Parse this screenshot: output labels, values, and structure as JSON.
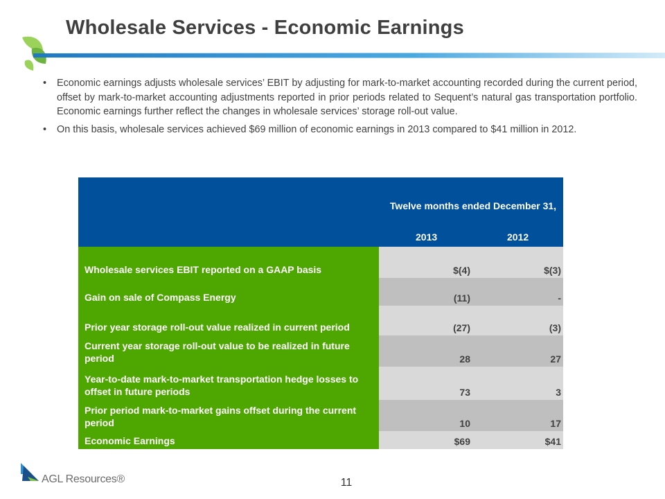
{
  "slide": {
    "title": "Wholesale Services - Economic Earnings",
    "page_number": "11",
    "logo_text": "AGL Resources®"
  },
  "bullets": [
    "Economic earnings adjusts wholesale services’ EBIT by adjusting for mark-to-market accounting recorded during the current period, offset by mark-to-market accounting adjustments reported in prior periods related to Sequent’s natural gas transportation portfolio. Economic earnings further reflect the changes in wholesale services’ storage roll-out value.",
    "On this basis, wholesale services achieved $69 million of economic earnings in 2013 compared to $41 million in 2012."
  ],
  "table": {
    "header_title": "Twelve months ended December 31,",
    "years": [
      "2013",
      "2012"
    ],
    "rows": [
      {
        "label": "Wholesale services EBIT reported on a GAAP basis",
        "v2013": "$(4)",
        "v2012": "$(3)"
      },
      {
        "label": "Gain on sale of Compass Energy",
        "v2013": "(11)",
        "v2012": "-"
      },
      {
        "label": "Prior year storage roll-out value realized in current period",
        "v2013": "(27)",
        "v2012": "(3)"
      },
      {
        "label": "Current year storage roll-out value to be realized in future period",
        "v2013": "28",
        "v2012": "27"
      },
      {
        "label": "Year-to-date mark-to-market transportation hedge losses to offset in future periods",
        "v2013": "73",
        "v2012": "3"
      },
      {
        "label": "Prior period mark-to-market gains offset during the current period",
        "v2013": "10",
        "v2012": "17"
      },
      {
        "label": "Economic Earnings",
        "v2013": "$69",
        "v2012": "$41"
      }
    ]
  },
  "colors": {
    "header_blue": "#01509c",
    "label_green": "#4ea600",
    "accent_leaf": "#78c043",
    "rule_blue": "#2e8fd0"
  }
}
